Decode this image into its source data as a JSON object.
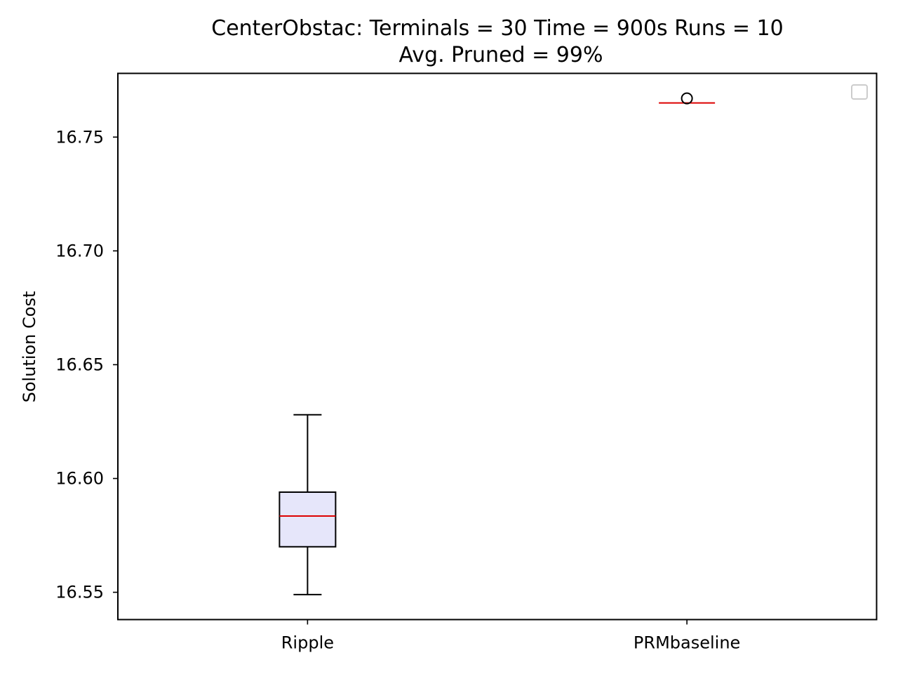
{
  "chart_data": {
    "type": "box",
    "title_line1": "CenterObstac:  Terminals = 30  Time = 900s  Runs = 10",
    "title_line2": "Avg. Pruned = 99%",
    "xlabel": "",
    "ylabel": "Solution Cost",
    "categories": [
      "Ripple",
      "PRMbaseline"
    ],
    "ylim": [
      16.538,
      16.778
    ],
    "yticks": [
      16.55,
      16.6,
      16.65,
      16.7,
      16.75
    ],
    "ytick_labels": [
      "16.55",
      "16.60",
      "16.65",
      "16.70",
      "16.75"
    ],
    "boxes": [
      {
        "category": "Ripple",
        "whisker_low": 16.549,
        "q1": 16.57,
        "median": 16.5835,
        "q3": 16.594,
        "whisker_high": 16.628,
        "outliers": []
      },
      {
        "category": "PRMbaseline",
        "whisker_low": 16.765,
        "q1": 16.765,
        "median": 16.765,
        "q3": 16.765,
        "whisker_high": 16.765,
        "outliers": [
          16.767
        ]
      }
    ],
    "grid": false,
    "legend": "top-right (empty)",
    "colors": {
      "box_fill": "#e6e6fa",
      "box_edge": "#000000",
      "median": "#dd0000",
      "legend_edge": "#cccccc"
    }
  }
}
